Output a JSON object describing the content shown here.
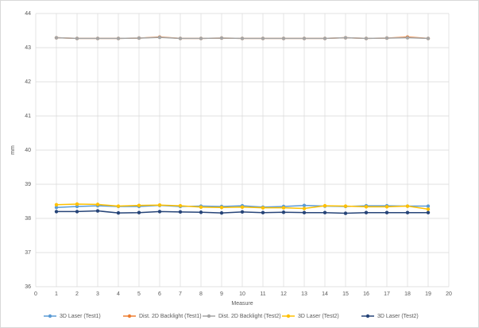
{
  "chart_data": {
    "type": "line",
    "x_label": "Measure",
    "y_label": "mm",
    "x": [
      1,
      2,
      3,
      4,
      5,
      6,
      7,
      8,
      9,
      10,
      11,
      12,
      13,
      14,
      15,
      16,
      17,
      18,
      19
    ],
    "xlim": [
      0,
      20
    ],
    "xticks": [
      0,
      1,
      2,
      3,
      4,
      5,
      6,
      7,
      8,
      9,
      10,
      11,
      12,
      13,
      14,
      15,
      16,
      17,
      18,
      19,
      20
    ],
    "ylim": [
      36,
      44
    ],
    "yticks": [
      36,
      37,
      38,
      39,
      40,
      41,
      42,
      43,
      44
    ],
    "grid": true,
    "legend": "bottom",
    "series": [
      {
        "name": "3D Laser (Test1)",
        "color": "#5b9bd5",
        "values": [
          38.32,
          38.35,
          38.37,
          38.35,
          38.35,
          38.38,
          38.35,
          38.36,
          38.35,
          38.37,
          38.33,
          38.35,
          38.38,
          38.36,
          38.35,
          38.37,
          38.37,
          38.36,
          38.36
        ]
      },
      {
        "name": "Dist. 2D Backlight (Test1)",
        "color": "#ed7d31",
        "values": [
          43.29,
          43.27,
          43.27,
          43.27,
          43.28,
          43.31,
          43.27,
          43.27,
          43.28,
          43.27,
          43.27,
          43.27,
          43.27,
          43.27,
          43.29,
          43.27,
          43.28,
          43.31,
          43.27
        ]
      },
      {
        "name": "Dist. 2D Backlight (Test2)",
        "color": "#a5a5a5",
        "values": [
          43.29,
          43.27,
          43.27,
          43.27,
          43.28,
          43.3,
          43.27,
          43.27,
          43.28,
          43.27,
          43.27,
          43.27,
          43.27,
          43.27,
          43.29,
          43.27,
          43.28,
          43.29,
          43.27
        ]
      },
      {
        "name": "3D Laser (Test2)",
        "color": "#ffc000",
        "values": [
          38.4,
          38.42,
          38.41,
          38.36,
          38.38,
          38.39,
          38.37,
          38.33,
          38.32,
          38.33,
          38.31,
          38.31,
          38.29,
          38.37,
          38.36,
          38.34,
          38.34,
          38.36,
          38.27
        ]
      },
      {
        "name": "3D Laser (Test2)",
        "color": "#264478",
        "values": [
          38.2,
          38.2,
          38.22,
          38.16,
          38.17,
          38.2,
          38.19,
          38.18,
          38.16,
          38.19,
          38.17,
          38.18,
          38.17,
          38.17,
          38.15,
          38.17,
          38.17,
          38.17,
          38.17
        ]
      }
    ]
  }
}
